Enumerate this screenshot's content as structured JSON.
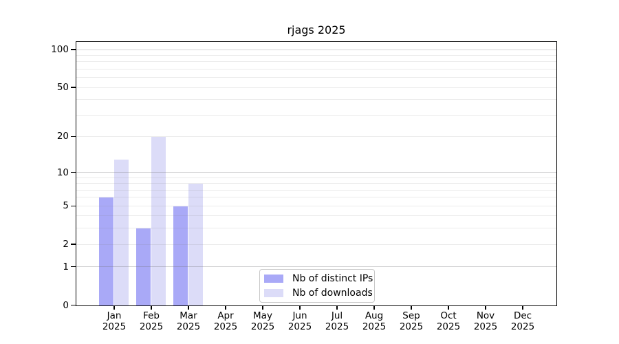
{
  "chart_data": {
    "type": "bar",
    "title": "rjags 2025",
    "categories": [
      "Jan",
      "Feb",
      "Mar",
      "Apr",
      "May",
      "Jun",
      "Jul",
      "Aug",
      "Sep",
      "Oct",
      "Nov",
      "Dec"
    ],
    "category_year": "2025",
    "series": [
      {
        "name": "Nb of distinct IPs",
        "color": "#a9a9f7",
        "values": [
          6,
          3,
          5,
          0,
          0,
          0,
          0,
          0,
          0,
          0,
          0,
          0
        ]
      },
      {
        "name": "Nb of downloads",
        "color": "#dcdcf8",
        "values": [
          13,
          20,
          8,
          0,
          0,
          0,
          0,
          0,
          0,
          0,
          0,
          0
        ]
      }
    ],
    "xlabel": "",
    "ylabel": "",
    "y_ticks": [
      0,
      1,
      2,
      5,
      10,
      20,
      50,
      100
    ],
    "gridlines": [
      1,
      2,
      3,
      4,
      5,
      6,
      7,
      8,
      9,
      10,
      20,
      30,
      40,
      50,
      60,
      70,
      80,
      90,
      100
    ],
    "major_gridlines": [
      1,
      10,
      100
    ],
    "scale": "log10(value+1)",
    "ylim": [
      0,
      114
    ],
    "grid": true,
    "legend_position": "bottom-center"
  }
}
